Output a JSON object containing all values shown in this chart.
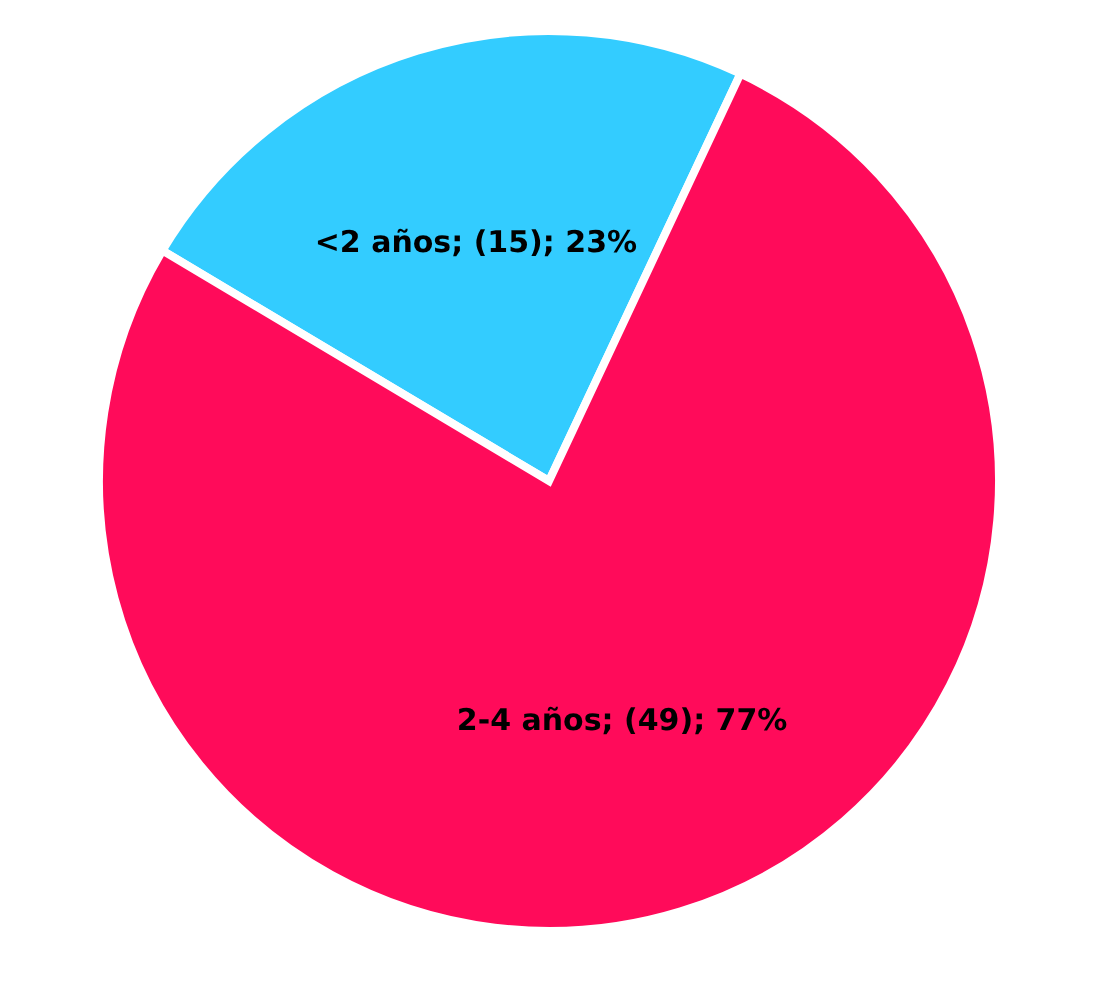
{
  "chart_data": {
    "type": "pie",
    "categories": [
      "<2 años",
      "2-4 años"
    ],
    "values": [
      15,
      49
    ],
    "colors": [
      "#33ccff",
      "#ff0b5a"
    ],
    "value_labels": [
      "(15); 23%",
      "(49); 77%"
    ],
    "legend": false
  }
}
